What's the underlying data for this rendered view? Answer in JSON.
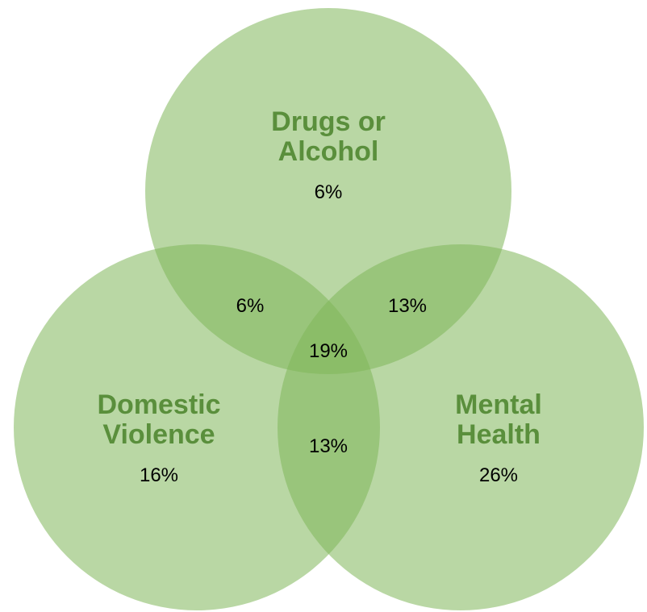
{
  "colors": {
    "circle_fill": "#7fb75a",
    "label_text": "#5a8f3c",
    "value_text": "#000000"
  },
  "sets": {
    "drugs": {
      "label_line1": "Drugs or",
      "label_line2": "Alcohol",
      "value": "6%"
    },
    "domestic": {
      "label_line1": "Domestic",
      "label_line2": "Violence",
      "value": "16%"
    },
    "mental": {
      "label_line1": "Mental",
      "label_line2": "Health",
      "value": "26%"
    }
  },
  "overlaps": {
    "drugs_domestic": "6%",
    "drugs_mental": "13%",
    "domestic_mental": "13%",
    "all_three": "19%"
  }
}
